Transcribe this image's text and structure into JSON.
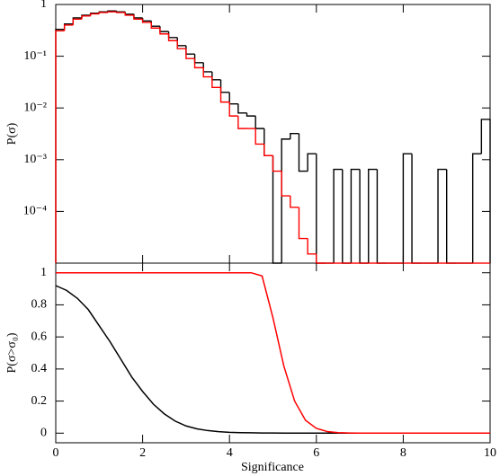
{
  "chart_data": [
    {
      "type": "histogram",
      "ylabel": "P(σ)",
      "log_y": true,
      "xlim": [
        0,
        10
      ],
      "xticks": [
        0,
        2,
        4,
        6,
        8,
        10
      ],
      "ylim": [
        1e-05,
        1
      ],
      "yticks": [
        {
          "value": 0.0001,
          "label": "10⁻⁴"
        },
        {
          "value": 0.001,
          "label": "10⁻³"
        },
        {
          "value": 0.01,
          "label": "10⁻²"
        },
        {
          "value": 0.1,
          "label": "10⁻¹"
        },
        1
      ],
      "bins": [
        0,
        0.2,
        0.4,
        0.6,
        0.8,
        1,
        1.2,
        1.4,
        1.6,
        1.8,
        2,
        2.2,
        2.4,
        2.6,
        2.8,
        3,
        3.2,
        3.4,
        3.6,
        3.8,
        4,
        4.2,
        4.4,
        4.6,
        4.8,
        5,
        5.2,
        5.4,
        5.6,
        5.8,
        6,
        6.2,
        6.4,
        6.6,
        6.8,
        7,
        7.2,
        7.4,
        7.6,
        7.8,
        8,
        8.2,
        8.4,
        8.6,
        8.8,
        9,
        9.2,
        9.4,
        9.6,
        9.8,
        10
      ],
      "series": [
        {
          "color": "#000000",
          "values": [
            0.33,
            0.42,
            0.55,
            0.62,
            0.68,
            0.72,
            0.75,
            0.72,
            0.65,
            0.55,
            0.48,
            0.38,
            0.3,
            0.23,
            0.16,
            0.11,
            0.075,
            0.05,
            0.035,
            0.02,
            0.012,
            0.008,
            0.007,
            0.004,
            0.0012,
            0,
            0.0025,
            0.0032,
            0.0006,
            0.0013,
            0,
            0,
            0.00065,
            0,
            0.00065,
            0,
            0.00065,
            0,
            0,
            0,
            0.0013,
            0,
            0,
            0,
            0.00065,
            0,
            0,
            0,
            0.0013,
            0.006
          ]
        },
        {
          "color": "#ff0000",
          "values": [
            0.31,
            0.4,
            0.52,
            0.6,
            0.66,
            0.7,
            0.72,
            0.7,
            0.62,
            0.52,
            0.45,
            0.35,
            0.27,
            0.2,
            0.14,
            0.09,
            0.06,
            0.04,
            0.025,
            0.013,
            0.007,
            0.004,
            0.004,
            0.002,
            0.0012,
            0.0006,
            0.0002,
            0.00012,
            3e-05,
            1.5e-05,
            0,
            0,
            0,
            0,
            0,
            0,
            0,
            0,
            0,
            0,
            0,
            0,
            0,
            0,
            0,
            0,
            0,
            0,
            0,
            0
          ]
        }
      ]
    },
    {
      "type": "line",
      "ylabel": "P(σ>σ₀)",
      "xlabel": "Significance",
      "xlim": [
        0,
        10
      ],
      "xticks": [
        0,
        2,
        4,
        6,
        8,
        10
      ],
      "ylim": [
        -0.06,
        1.06
      ],
      "yticks": [
        0,
        0.2,
        0.4,
        0.6,
        0.8,
        1
      ],
      "x": [
        0,
        0.25,
        0.5,
        0.75,
        1,
        1.25,
        1.5,
        1.75,
        2,
        2.25,
        2.5,
        2.75,
        3,
        3.25,
        3.5,
        3.75,
        4,
        4.25,
        4.5,
        4.75,
        5,
        5.25,
        5.5,
        5.75,
        6,
        6.25,
        6.5,
        6.75,
        7,
        7.5,
        8,
        8.5,
        9,
        9.5,
        10
      ],
      "series": [
        {
          "color": "#000000",
          "values": [
            0.92,
            0.89,
            0.84,
            0.77,
            0.67,
            0.57,
            0.46,
            0.35,
            0.26,
            0.18,
            0.12,
            0.075,
            0.045,
            0.027,
            0.016,
            0.009,
            0.005,
            0.003,
            0.002,
            0.001,
            0.0007,
            0,
            0,
            0,
            0,
            0,
            0,
            0,
            0,
            0,
            0,
            0,
            0,
            0,
            0
          ]
        },
        {
          "color": "#ff0000",
          "values": [
            1,
            1,
            1,
            1,
            1,
            1,
            1,
            1,
            1,
            1,
            1,
            1,
            1,
            1,
            1,
            1,
            1,
            1,
            1,
            0.98,
            0.72,
            0.42,
            0.2,
            0.08,
            0.03,
            0.01,
            0.003,
            0.001,
            0,
            0,
            0,
            0,
            0,
            0,
            0
          ]
        }
      ]
    }
  ]
}
